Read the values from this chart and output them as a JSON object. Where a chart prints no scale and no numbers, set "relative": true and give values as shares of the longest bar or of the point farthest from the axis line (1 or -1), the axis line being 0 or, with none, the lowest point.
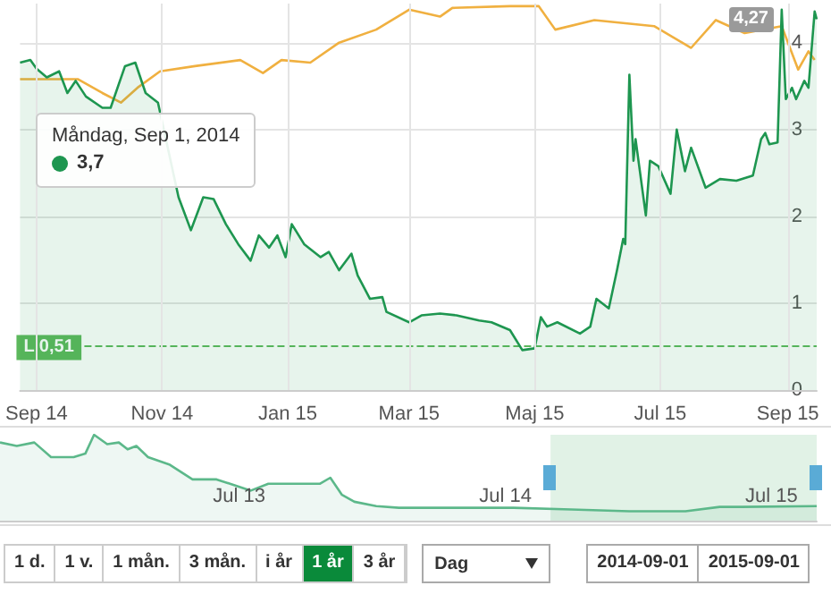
{
  "chart_data": [
    {
      "type": "area",
      "xlim": [
        "2014-08-24",
        "2015-09-15"
      ],
      "ylim": [
        0,
        4.45
      ],
      "yticks": [
        0,
        1,
        2,
        3,
        4
      ],
      "grid": true,
      "xticks": [
        {
          "value": "2014-09-01",
          "label": "Sep 14"
        },
        {
          "value": "2014-11-01",
          "label": "Nov 14"
        },
        {
          "value": "2015-01-01",
          "label": "Jan 15"
        },
        {
          "value": "2015-03-01",
          "label": "Mar 15"
        },
        {
          "value": "2015-05-01",
          "label": "Maj 15"
        },
        {
          "value": "2015-07-01",
          "label": "Jul 15"
        },
        {
          "value": "2015-09-01",
          "label": "Sep 15"
        }
      ],
      "series": [
        {
          "type": "area",
          "color": "#1e9650",
          "x": [
            "2014-08-24",
            "2014-08-29",
            "2014-09-01",
            "2014-09-06",
            "2014-09-12",
            "2014-09-16",
            "2014-09-20",
            "2014-09-25",
            "2014-10-03",
            "2014-10-07",
            "2014-10-12",
            "2014-10-14",
            "2014-10-19",
            "2014-10-24",
            "2014-10-28",
            "2014-10-30",
            "2014-11-04",
            "2014-11-09",
            "2014-11-15",
            "2014-11-21",
            "2014-11-26",
            "2014-12-02",
            "2014-12-08",
            "2014-12-14",
            "2014-12-18",
            "2014-12-23",
            "2014-12-27",
            "2014-12-31",
            "2015-01-03",
            "2015-01-09",
            "2015-01-17",
            "2015-01-21",
            "2015-01-26",
            "2015-02-01",
            "2015-02-04",
            "2015-02-10",
            "2015-02-16",
            "2015-02-18",
            "2015-03-01",
            "2015-03-07",
            "2015-03-16",
            "2015-03-24",
            "2015-04-04",
            "2015-04-10",
            "2015-04-19",
            "2015-04-25",
            "2015-05-01",
            "2015-05-04",
            "2015-05-07",
            "2015-05-12",
            "2015-05-23",
            "2015-05-28",
            "2015-05-31",
            "2015-06-06",
            "2015-06-10",
            "2015-06-13",
            "2015-06-14",
            "2015-06-16",
            "2015-06-18",
            "2015-06-19",
            "2015-06-24",
            "2015-06-26",
            "2015-06-30",
            "2015-07-06",
            "2015-07-09",
            "2015-07-13",
            "2015-07-16",
            "2015-07-23",
            "2015-07-30",
            "2015-08-07",
            "2015-08-15",
            "2015-08-19",
            "2015-08-21",
            "2015-08-23",
            "2015-08-27",
            "2015-08-29",
            "2015-08-31",
            "2015-09-03",
            "2015-09-05",
            "2015-09-09",
            "2015-09-11",
            "2015-09-14",
            "2015-09-15"
          ],
          "values": [
            3.77,
            3.8,
            3.7,
            3.6,
            3.67,
            3.42,
            3.56,
            3.38,
            3.25,
            3.25,
            null,
            3.73,
            3.77,
            3.42,
            null,
            3.31,
            null,
            2.22,
            1.84,
            2.22,
            2.2,
            1.91,
            1.68,
            1.49,
            1.78,
            1.64,
            1.78,
            1.53,
            1.91,
            1.68,
            1.53,
            1.59,
            1.38,
            1.57,
            1.32,
            1.05,
            1.07,
            0.9,
            0.78,
            0.86,
            0.88,
            0.86,
            0.8,
            0.78,
            0.69,
            0.46,
            0.48,
            0.84,
            0.73,
            0.78,
            0.65,
            0.73,
            1.05,
            0.94,
            1.38,
            1.74,
            1.68,
            3.63,
            2.64,
            2.89,
            2.01,
            2.64,
            2.58,
            2.26,
            3.0,
            2.52,
            2.79,
            2.33,
            2.43,
            2.41,
            2.47,
            2.89,
            2.96,
            2.83,
            2.85,
            4.38,
            3.35,
            3.48,
            3.35,
            3.56,
            3.48,
            4.36,
            4.27
          ]
        },
        {
          "type": "line",
          "color": "#f0b040",
          "x": [
            "2014-08-24",
            "2014-09-21",
            "2014-10-03",
            "2014-10-12",
            "2014-10-20",
            "2014-10-31",
            "2014-11-17",
            "2014-12-09",
            "2014-12-20",
            "2014-12-29",
            "2015-01-12",
            "2015-01-26",
            "2015-02-13",
            "2015-03-01",
            "2015-03-16",
            "2015-03-22",
            "2015-04-19",
            "2015-05-03",
            "2015-05-11",
            "2015-05-30",
            "2015-06-28",
            "2015-07-16",
            "2015-07-28",
            "2015-08-11",
            "2015-08-29",
            "2015-09-06",
            "2015-09-11",
            "2015-09-14"
          ],
          "values": [
            3.58,
            3.58,
            3.42,
            3.31,
            3.48,
            3.67,
            3.73,
            3.8,
            3.65,
            3.8,
            3.77,
            4.0,
            4.15,
            4.38,
            4.3,
            4.4,
            4.42,
            4.42,
            4.15,
            4.26,
            4.19,
            3.94,
            4.26,
            4.11,
            4.19,
            3.69,
            3.9,
            3.8
          ]
        }
      ],
      "ref_lines": [
        {
          "axis": "y",
          "value": 0.51,
          "label": "L 0,51",
          "color": "#5cb85c",
          "line_style": "dashed"
        }
      ],
      "annotations": [
        "Måndag, Sep 1, 2014",
        "3,7",
        {
          "text": "4,27",
          "x": "2015-09-15",
          "y": 4.27
        }
      ]
    },
    {
      "type": "area",
      "relative": true,
      "xlim": [
        "2012-08-07",
        "2015-09-01"
      ],
      "xticks": [
        {
          "value": "2013-07-01",
          "label": "Jul 13"
        },
        {
          "value": "2014-07-01",
          "label": "Jul 14"
        },
        {
          "value": "2015-07-01",
          "label": "Jul 15"
        }
      ],
      "series": [
        {
          "type": "area",
          "color": "#5cb88a",
          "x": [
            "2012-08-07",
            "2012-08-30",
            "2012-09-23",
            "2012-10-16",
            "2012-11-16",
            "2012-12-02",
            "2012-12-14",
            "2013-01-01",
            "2013-01-17",
            "2013-01-29",
            "2013-02-10",
            "2013-02-26",
            "2013-03-28",
            "2013-04-28",
            "2013-05-31",
            "2013-07-17",
            "2013-08-10",
            "2013-09-17",
            "2013-10-20",
            "2013-11-03",
            "2013-11-19",
            "2013-12-06",
            "2014-01-05",
            "2014-02-05",
            "2014-04-26",
            "2014-07-12",
            "2014-09-29",
            "2014-12-18",
            "2015-03-05",
            "2015-04-21",
            "2015-05-22",
            "2015-09-01"
          ],
          "values": [
            0.91,
            0.87,
            0.91,
            0.74,
            0.74,
            0.78,
            1,
            0.89,
            0.91,
            0.83,
            0.87,
            0.74,
            0.65,
            0.48,
            0.48,
            0.35,
            0.43,
            0.43,
            0.43,
            0.5,
            0.3,
            0.22,
            0.17,
            0.15,
            0.15,
            0.15,
            0.13,
            0.11,
            0.11,
            0.16,
            0.16,
            0.17
          ]
        }
      ],
      "bands": [
        {
          "axis": "x",
          "from": "2014-09-01",
          "to": "2015-09-01",
          "color": "#d4ecdc"
        }
      ]
    },
    {
      "type": "other",
      "categories": [
        "1 d.",
        "1 v.",
        "1 mån.",
        "3 mån.",
        "i år",
        "1 år",
        "3 år"
      ],
      "colors": [
        "#ffffff",
        "#ffffff",
        "#ffffff",
        "#ffffff",
        "#ffffff",
        "#0a8a3a",
        "#ffffff"
      ],
      "annotations": [
        "Dag",
        "2014-09-01",
        "2015-09-01"
      ]
    }
  ]
}
